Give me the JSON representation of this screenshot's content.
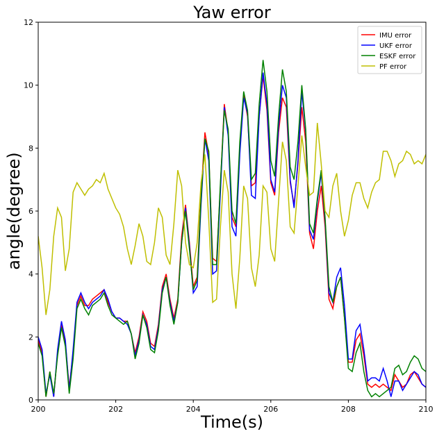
{
  "chart_data": {
    "type": "line",
    "title": "Yaw error",
    "x_label": "Time(s)",
    "y_label": "angle(degree)",
    "x": [
      200,
      200.1,
      200.2,
      200.3,
      200.4,
      200.5,
      200.6,
      200.7,
      200.8,
      200.9,
      201,
      201.1,
      201.2,
      201.3,
      201.4,
      201.5,
      201.6,
      201.7,
      201.8,
      201.9,
      202,
      202.1,
      202.2,
      202.3,
      202.4,
      202.5,
      202.6,
      202.7,
      202.8,
      202.9,
      203,
      203.1,
      203.2,
      203.3,
      203.4,
      203.5,
      203.6,
      203.7,
      203.8,
      203.9,
      204,
      204.1,
      204.2,
      204.3,
      204.4,
      204.5,
      204.6,
      204.7,
      204.8,
      204.9,
      205,
      205.1,
      205.2,
      205.3,
      205.4,
      205.5,
      205.6,
      205.7,
      205.8,
      205.9,
      206,
      206.1,
      206.2,
      206.3,
      206.4,
      206.5,
      206.6,
      206.7,
      206.8,
      206.9,
      207,
      207.1,
      207.2,
      207.3,
      207.4,
      207.5,
      207.6,
      207.7,
      207.8,
      207.9,
      208,
      208.1,
      208.2,
      208.3,
      208.4,
      208.5,
      208.6,
      208.7,
      208.8,
      208.9,
      209,
      209.1,
      209.2,
      209.3,
      209.4,
      209.5,
      209.6,
      209.7,
      209.8,
      209.9,
      210
    ],
    "series": [
      {
        "name": "IMU error",
        "color": "#ff0000",
        "values": [
          1.9,
          1.5,
          0.1,
          0.9,
          0.1,
          1.5,
          2.4,
          1.8,
          0.4,
          1.5,
          3.0,
          3.3,
          3.0,
          3.0,
          3.2,
          3.3,
          3.4,
          3.5,
          3.1,
          2.8,
          2.6,
          2.6,
          2.5,
          2.5,
          2.1,
          1.5,
          2.0,
          2.8,
          2.5,
          1.8,
          1.7,
          2.4,
          3.6,
          4.0,
          3.2,
          2.6,
          3.2,
          5.2,
          6.2,
          5.0,
          3.6,
          3.9,
          6.5,
          8.5,
          7.8,
          4.5,
          4.4,
          6.8,
          9.4,
          8.5,
          5.8,
          5.5,
          8.0,
          9.7,
          9.0,
          6.8,
          6.9,
          9.0,
          10.3,
          9.2,
          6.9,
          6.5,
          8.5,
          9.6,
          9.3,
          6.9,
          6.2,
          7.5,
          9.3,
          8.2,
          5.3,
          4.8,
          6.0,
          6.8,
          5.5,
          3.2,
          2.9,
          3.6,
          3.9,
          2.6,
          1.2,
          1.2,
          1.9,
          2.1,
          1.4,
          0.5,
          0.4,
          0.5,
          0.4,
          0.5,
          0.4,
          0.3,
          0.8,
          0.6,
          0.4,
          0.5,
          0.8,
          0.9,
          0.7,
          0.5,
          0.4
        ]
      },
      {
        "name": "UKF error",
        "color": "#0000ff",
        "values": [
          2.0,
          1.6,
          0.2,
          0.8,
          0.1,
          1.6,
          2.5,
          1.9,
          0.3,
          1.6,
          3.1,
          3.4,
          3.1,
          2.9,
          3.1,
          3.2,
          3.3,
          3.5,
          3.2,
          2.8,
          2.6,
          2.6,
          2.5,
          2.4,
          2.1,
          1.4,
          1.9,
          2.7,
          2.4,
          1.7,
          1.6,
          2.3,
          3.5,
          3.9,
          3.1,
          2.5,
          3.1,
          5.0,
          6.1,
          4.9,
          3.4,
          3.6,
          6.2,
          8.3,
          7.6,
          4.0,
          4.1,
          6.6,
          9.3,
          8.4,
          5.5,
          5.2,
          7.8,
          9.6,
          9.1,
          6.5,
          6.4,
          9.0,
          10.4,
          9.4,
          7.0,
          6.6,
          8.7,
          10.0,
          9.6,
          7.0,
          6.1,
          7.6,
          9.8,
          8.5,
          5.4,
          5.1,
          6.3,
          7.2,
          5.7,
          3.4,
          3.1,
          3.9,
          4.2,
          3.0,
          1.3,
          1.3,
          2.2,
          2.4,
          1.6,
          0.6,
          0.7,
          0.7,
          0.6,
          1.0,
          0.6,
          0.1,
          0.6,
          0.6,
          0.3,
          0.5,
          0.7,
          0.9,
          0.8,
          0.5,
          0.4
        ]
      },
      {
        "name": "ESKF error",
        "color": "#008000",
        "values": [
          1.8,
          1.4,
          0.1,
          0.9,
          0.2,
          1.4,
          2.3,
          1.7,
          0.2,
          1.3,
          2.9,
          3.2,
          2.9,
          2.7,
          3.0,
          3.1,
          3.2,
          3.4,
          3.0,
          2.7,
          2.6,
          2.5,
          2.4,
          2.5,
          2.1,
          1.3,
          1.8,
          2.7,
          2.3,
          1.6,
          1.5,
          2.2,
          3.4,
          3.9,
          3.0,
          2.4,
          3.1,
          5.0,
          6.0,
          4.8,
          3.5,
          3.8,
          6.4,
          8.3,
          7.9,
          4.3,
          4.3,
          6.9,
          9.2,
          8.6,
          6.0,
          5.6,
          8.2,
          9.8,
          9.2,
          7.0,
          7.2,
          9.4,
          10.8,
          9.8,
          7.6,
          7.1,
          9.0,
          10.5,
          9.8,
          7.4,
          7.0,
          8.2,
          10.0,
          8.6,
          5.6,
          5.3,
          6.4,
          7.3,
          5.8,
          3.6,
          3.1,
          3.6,
          3.9,
          2.6,
          1.0,
          0.9,
          1.5,
          1.8,
          0.9,
          0.3,
          0.1,
          0.2,
          0.1,
          0.2,
          0.3,
          0.4,
          1.0,
          1.1,
          0.8,
          0.9,
          1.2,
          1.4,
          1.3,
          1.0,
          0.9
        ]
      },
      {
        "name": "PF error",
        "color": "#bfbf00",
        "values": [
          5.2,
          4.2,
          2.7,
          3.5,
          5.2,
          6.1,
          5.8,
          4.1,
          4.8,
          6.6,
          6.9,
          6.7,
          6.5,
          6.7,
          6.8,
          7.0,
          6.9,
          7.2,
          6.7,
          6.4,
          6.1,
          5.9,
          5.5,
          4.8,
          4.3,
          4.9,
          5.6,
          5.2,
          4.4,
          4.3,
          5.0,
          6.1,
          5.8,
          4.6,
          4.3,
          5.6,
          7.3,
          6.8,
          5.0,
          4.3,
          4.2,
          5.0,
          6.9,
          7.8,
          5.7,
          3.1,
          3.2,
          5.5,
          7.3,
          6.6,
          4.0,
          2.9,
          4.5,
          6.8,
          6.4,
          4.2,
          3.6,
          4.6,
          6.8,
          6.6,
          4.8,
          4.4,
          6.3,
          8.2,
          7.6,
          5.5,
          5.3,
          6.8,
          8.4,
          7.4,
          6.5,
          6.6,
          8.8,
          7.5,
          6.0,
          5.8,
          6.8,
          7.2,
          6.0,
          5.2,
          5.7,
          6.5,
          6.9,
          6.9,
          6.4,
          6.1,
          6.6,
          6.9,
          7.0,
          7.9,
          7.9,
          7.6,
          7.1,
          7.5,
          7.6,
          7.9,
          7.8,
          7.5,
          7.6,
          7.5,
          7.8
        ]
      }
    ],
    "xlim": [
      200,
      210
    ],
    "xticks": [
      200,
      202,
      204,
      206,
      208,
      210
    ],
    "ylim": [
      0,
      12
    ],
    "yticks": [
      0,
      2,
      4,
      6,
      8,
      10,
      12
    ],
    "grid": false,
    "legend": "upper right"
  }
}
